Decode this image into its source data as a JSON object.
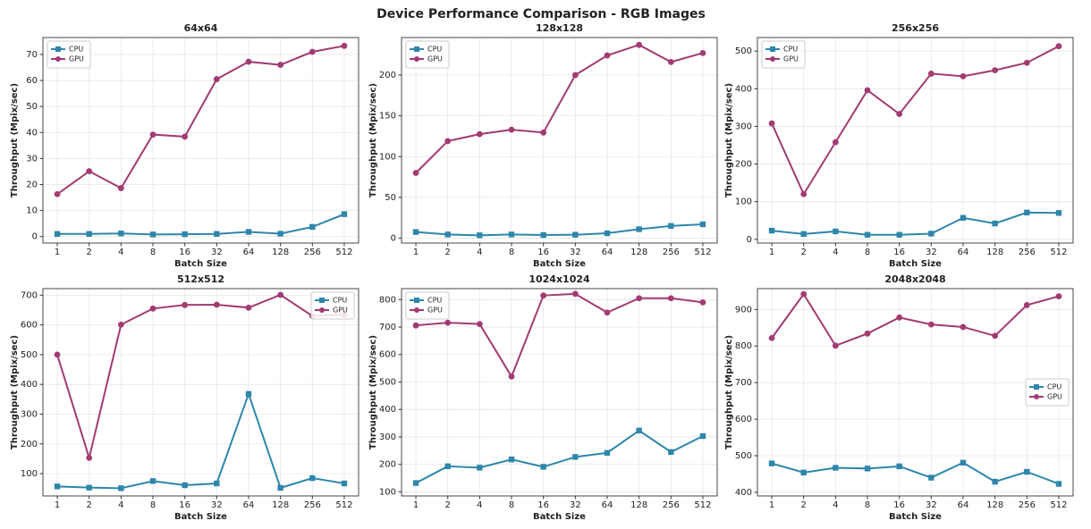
{
  "title": "Device Performance Comparison - RGB Images",
  "chart_data": [
    {
      "type": "line",
      "title": "64x64",
      "xlabel": "Batch Size",
      "ylabel": "Throughput (Mpix/sec)",
      "categories": [
        "1",
        "2",
        "4",
        "8",
        "16",
        "32",
        "64",
        "128",
        "256",
        "512"
      ],
      "series": [
        {
          "name": "CPU",
          "color": "#2e86ab",
          "marker": "square",
          "values": [
            1,
            1,
            1.2,
            0.8,
            0.9,
            1,
            1.8,
            1.1,
            3.7,
            8.6
          ]
        },
        {
          "name": "GPU",
          "color": "#a23b72",
          "marker": "circle",
          "values": [
            16.3,
            25.1,
            18.6,
            39.2,
            38.4,
            60.5,
            67.2,
            66,
            71,
            73.3
          ]
        }
      ],
      "ylim": [
        -2.5,
        76.5
      ],
      "yticks": [
        0,
        10,
        20,
        30,
        40,
        50,
        60,
        70
      ],
      "grid": true,
      "legend": "upper left"
    },
    {
      "type": "line",
      "title": "128x128",
      "xlabel": "Batch Size",
      "ylabel": "Throughput (Mpix/sec)",
      "categories": [
        "1",
        "2",
        "4",
        "8",
        "16",
        "32",
        "64",
        "128",
        "256",
        "512"
      ],
      "series": [
        {
          "name": "CPU",
          "color": "#2e86ab",
          "marker": "square",
          "values": [
            7.5,
            4.5,
            3.5,
            4.5,
            3.8,
            4.2,
            6,
            11,
            15,
            17
          ]
        },
        {
          "name": "GPU",
          "color": "#a23b72",
          "marker": "circle",
          "values": [
            80,
            119,
            127.5,
            133,
            129.5,
            200,
            224,
            237,
            216,
            227
          ]
        }
      ],
      "ylim": [
        -6,
        246
      ],
      "yticks": [
        0,
        50,
        100,
        150,
        200
      ],
      "grid": true,
      "legend": "upper left"
    },
    {
      "type": "line",
      "title": "256x256",
      "xlabel": "Batch Size",
      "ylabel": "Throughput (Mpix/sec)",
      "categories": [
        "1",
        "2",
        "4",
        "8",
        "16",
        "32",
        "64",
        "128",
        "256",
        "512"
      ],
      "series": [
        {
          "name": "CPU",
          "color": "#2e86ab",
          "marker": "square",
          "values": [
            23,
            14,
            21,
            12,
            12,
            15,
            57,
            42,
            71,
            70
          ]
        },
        {
          "name": "GPU",
          "color": "#a23b72",
          "marker": "circle",
          "values": [
            308,
            120,
            258,
            396,
            333,
            440,
            433,
            449,
            469,
            513
          ]
        }
      ],
      "ylim": [
        -10,
        536
      ],
      "yticks": [
        0,
        100,
        200,
        300,
        400,
        500
      ],
      "grid": true,
      "legend": "upper left"
    },
    {
      "type": "line",
      "title": "512x512",
      "xlabel": "Batch Size",
      "ylabel": "Throughput (Mpix/sec)",
      "categories": [
        "1",
        "2",
        "4",
        "8",
        "16",
        "32",
        "64",
        "128",
        "256",
        "512"
      ],
      "series": [
        {
          "name": "CPU",
          "color": "#2e86ab",
          "marker": "square",
          "values": [
            57,
            53,
            51,
            75,
            61,
            67,
            368,
            52,
            85,
            67
          ]
        },
        {
          "name": "GPU",
          "color": "#a23b72",
          "marker": "circle",
          "values": [
            500,
            153,
            601,
            655,
            667,
            668,
            658,
            701,
            630,
            635
          ]
        }
      ],
      "ylim": [
        25,
        722
      ],
      "yticks": [
        100,
        200,
        300,
        400,
        500,
        600,
        700
      ],
      "grid": true,
      "legend": "upper right"
    },
    {
      "type": "line",
      "title": "1024x1024",
      "xlabel": "Batch Size",
      "ylabel": "Throughput (Mpix/sec)",
      "categories": [
        "1",
        "2",
        "4",
        "8",
        "16",
        "32",
        "64",
        "128",
        "256",
        "512"
      ],
      "series": [
        {
          "name": "CPU",
          "color": "#2e86ab",
          "marker": "square",
          "values": [
            132,
            193,
            188,
            218,
            191,
            227,
            242,
            323,
            245,
            303
          ]
        },
        {
          "name": "GPU",
          "color": "#a23b72",
          "marker": "circle",
          "values": [
            706,
            716,
            711,
            520,
            815,
            821,
            753,
            805,
            805,
            790
          ]
        }
      ],
      "ylim": [
        85,
        840
      ],
      "yticks": [
        100,
        200,
        300,
        400,
        500,
        600,
        700,
        800
      ],
      "grid": true,
      "legend": "upper left"
    },
    {
      "type": "line",
      "title": "2048x2048",
      "xlabel": "Batch Size",
      "ylabel": "Throughput (Mpix/sec)",
      "categories": [
        "1",
        "2",
        "4",
        "8",
        "16",
        "32",
        "64",
        "128",
        "256",
        "512"
      ],
      "series": [
        {
          "name": "CPU",
          "color": "#2e86ab",
          "marker": "square",
          "values": [
            479,
            454,
            467,
            465,
            471,
            440,
            481,
            429,
            456,
            423
          ]
        },
        {
          "name": "GPU",
          "color": "#a23b72",
          "marker": "circle",
          "values": [
            822,
            942,
            801,
            834,
            878,
            859,
            852,
            828,
            912,
            936
          ]
        }
      ],
      "ylim": [
        390,
        957
      ],
      "yticks": [
        400,
        500,
        600,
        700,
        800,
        900
      ],
      "grid": true,
      "legend": "center right"
    }
  ]
}
